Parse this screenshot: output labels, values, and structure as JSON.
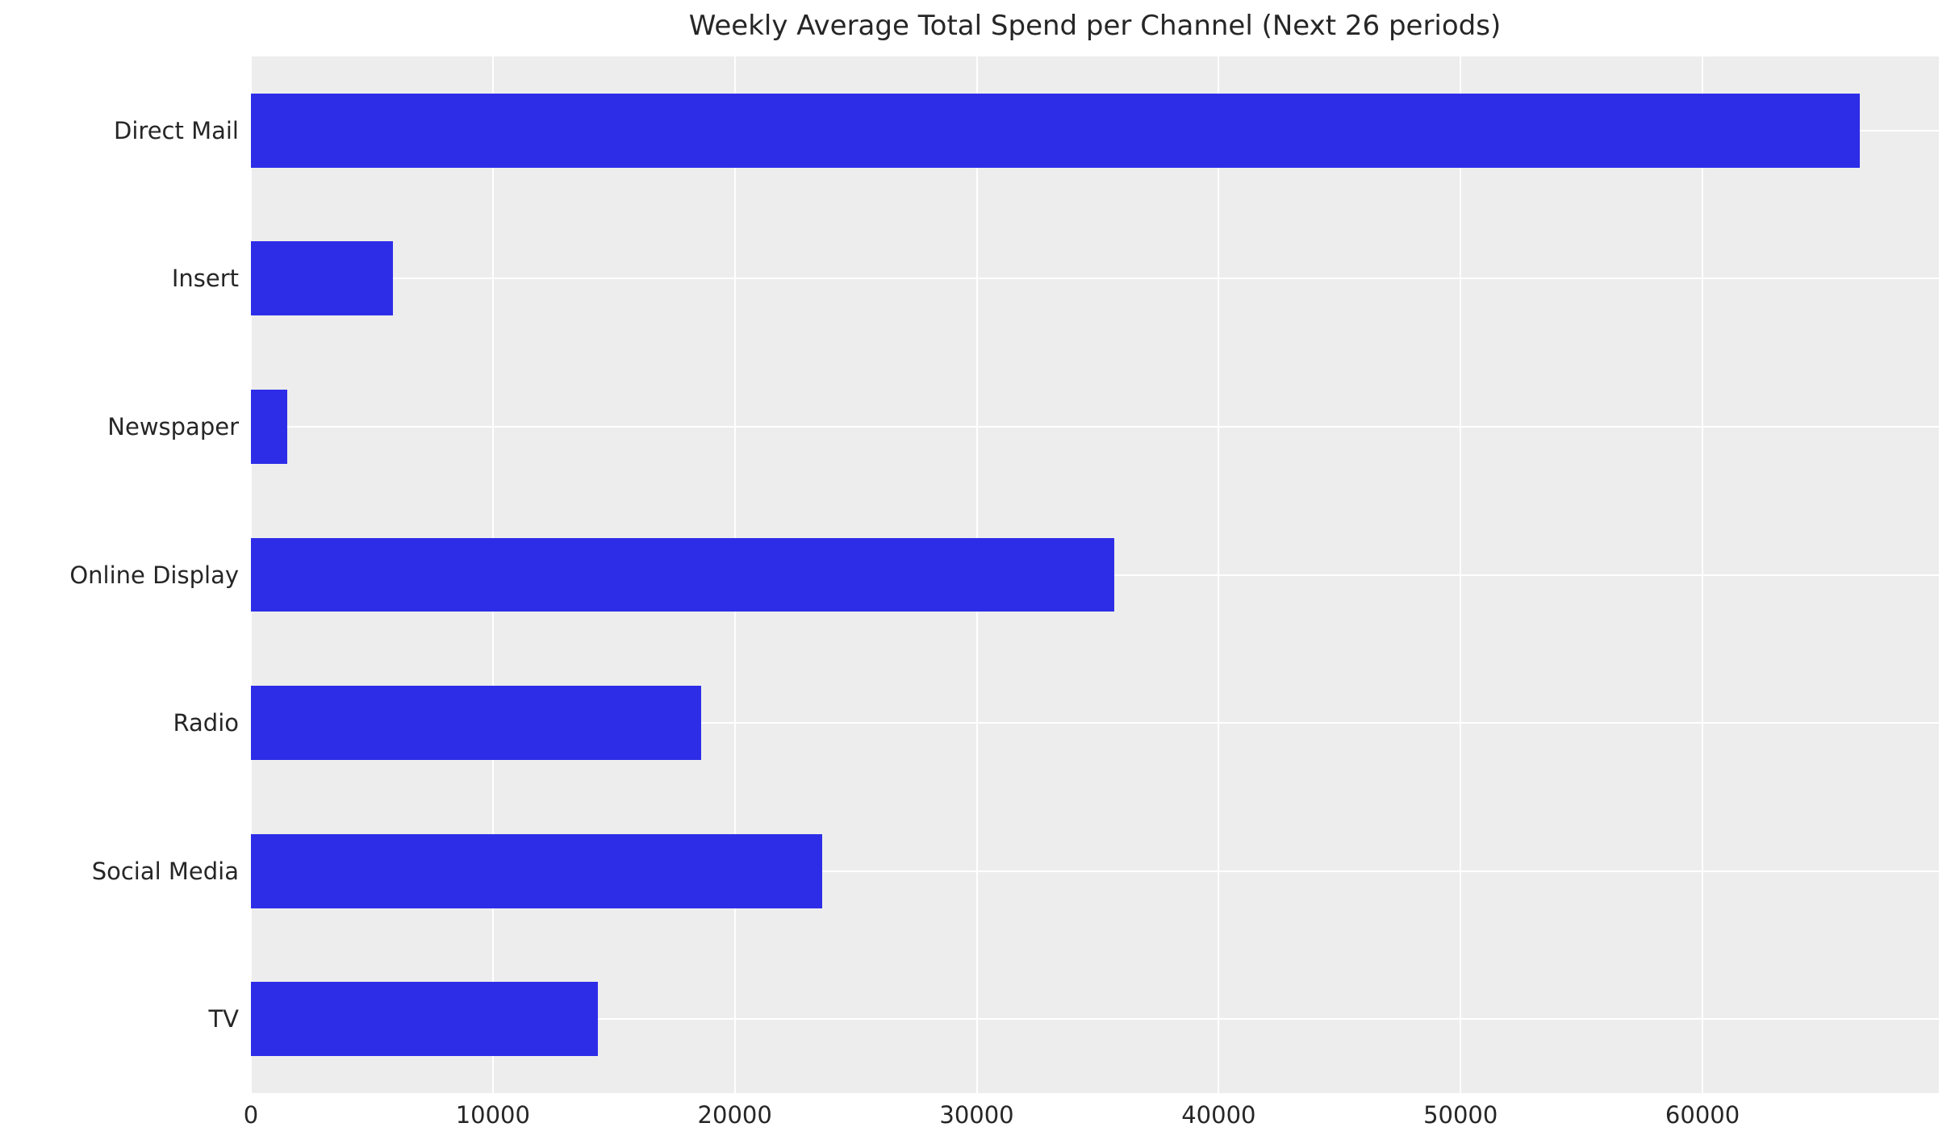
{
  "chart_data": {
    "type": "bar",
    "orientation": "horizontal",
    "title": "Weekly Average Total Spend per Channel (Next 26 periods)",
    "categories": [
      "Direct Mail",
      "Insert",
      "Newspaper",
      "Online Display",
      "Radio",
      "Social Media",
      "TV"
    ],
    "values": [
      66500,
      5870,
      1500,
      35700,
      18600,
      23600,
      14350
    ],
    "xlabel": "",
    "ylabel": "",
    "xlim": [
      0,
      69770
    ],
    "x_ticks": [
      0,
      10000,
      20000,
      30000,
      40000,
      50000,
      60000
    ],
    "x_tick_labels": [
      "0",
      "10000",
      "20000",
      "30000",
      "40000",
      "50000",
      "60000"
    ],
    "grid": true,
    "legend": "none",
    "bar_relative_height": 0.5,
    "colors": {
      "bar": "#2d2de8",
      "plot_background": "#ededed",
      "figure_background": "#ffffff",
      "gridline": "#ffffff",
      "text": "#262626"
    }
  }
}
